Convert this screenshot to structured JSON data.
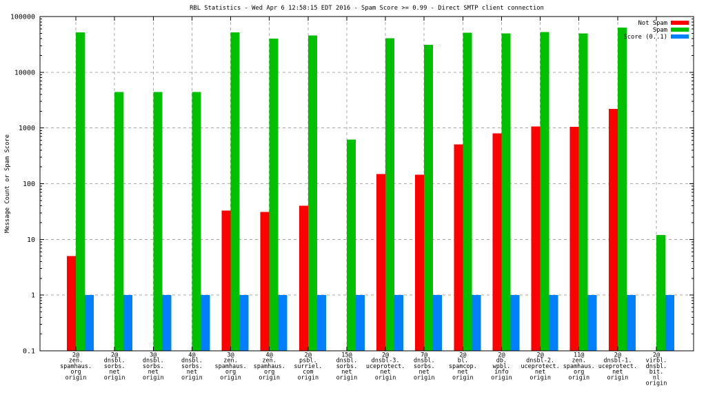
{
  "page": {
    "background": "#ffffff"
  },
  "chart_data": {
    "type": "bar",
    "title": "RBL Statistics - Wed Apr  6 12:58:15 EDT 2016 - Spam Score >= 0.99 - Direct SMTP client connection",
    "ylabel": "Message Count or Spam Score",
    "xlabel": "",
    "yscale": "log",
    "ylim": [
      0.1,
      100000
    ],
    "grid": true,
    "legend_position": "top-right-inside",
    "colors": {
      "not_spam": "#ff0000",
      "spam": "#00c000",
      "score": "#0080ff",
      "gridline": "#a8a8a8",
      "axis": "#000000"
    },
    "yticks": [
      {
        "label": "100000",
        "value": 100000
      },
      {
        "label": "10000",
        "value": 10000
      },
      {
        "label": "1000",
        "value": 1000
      },
      {
        "label": "100",
        "value": 100
      },
      {
        "label": "10",
        "value": 10
      },
      {
        "label": "1",
        "value": 1
      },
      {
        "label": "0.1",
        "value": 0.1
      }
    ],
    "categories": [
      [
        "2@",
        "zen.",
        "spamhaus.",
        "org",
        "origin"
      ],
      [
        "2@",
        "dnsbl.",
        "sorbs.",
        "net",
        "origin"
      ],
      [
        "3@",
        "dnsbl.",
        "sorbs.",
        "net",
        "origin"
      ],
      [
        "4@",
        "dnsbl.",
        "sorbs.",
        "net",
        "origin"
      ],
      [
        "3@",
        "zen.",
        "spamhaus.",
        "org",
        "origin"
      ],
      [
        "4@",
        "zen.",
        "spamhaus.",
        "org",
        "origin"
      ],
      [
        "2@",
        "psbl.",
        "surriel.",
        "com",
        "origin"
      ],
      [
        "15@",
        "dnsbl.",
        "sorbs.",
        "net",
        "origin"
      ],
      [
        "2@",
        "dnsbl-3.",
        "uceprotect.",
        "net",
        "origin"
      ],
      [
        "7@",
        "dnsbl.",
        "sorbs.",
        "net",
        "origin"
      ],
      [
        "2@",
        "bl.",
        "spamcop.",
        "net",
        "origin"
      ],
      [
        "2@",
        "db.",
        "wpbl.",
        "info",
        "origin"
      ],
      [
        "2@",
        "dnsbl-2.",
        "uceprotect.",
        "net",
        "origin"
      ],
      [
        "11@",
        "zen.",
        "spamhaus.",
        "org",
        "origin"
      ],
      [
        "2@",
        "dnsbl-1.",
        "uceprotect.",
        "net",
        "origin"
      ],
      [
        "2@",
        "virbl.",
        "dnsbl.",
        "bit.",
        "nl",
        "origin"
      ]
    ],
    "series": [
      {
        "name": "Not Spam",
        "color": "#ff0000",
        "values": [
          5,
          null,
          null,
          null,
          33,
          31,
          40,
          null,
          150,
          145,
          510,
          800,
          1070,
          1050,
          2200,
          null
        ]
      },
      {
        "name": "Spam",
        "color": "#00c000",
        "values": [
          52000,
          4400,
          4400,
          4400,
          52000,
          40000,
          46000,
          620,
          41000,
          31000,
          51000,
          50000,
          53000,
          50000,
          63000,
          12
        ]
      },
      {
        "name": "Score (0..1)",
        "color": "#0080ff",
        "values": [
          1,
          1,
          1,
          1,
          1,
          1,
          1,
          1,
          1,
          1,
          1,
          1,
          1,
          1,
          1,
          1
        ]
      }
    ]
  }
}
